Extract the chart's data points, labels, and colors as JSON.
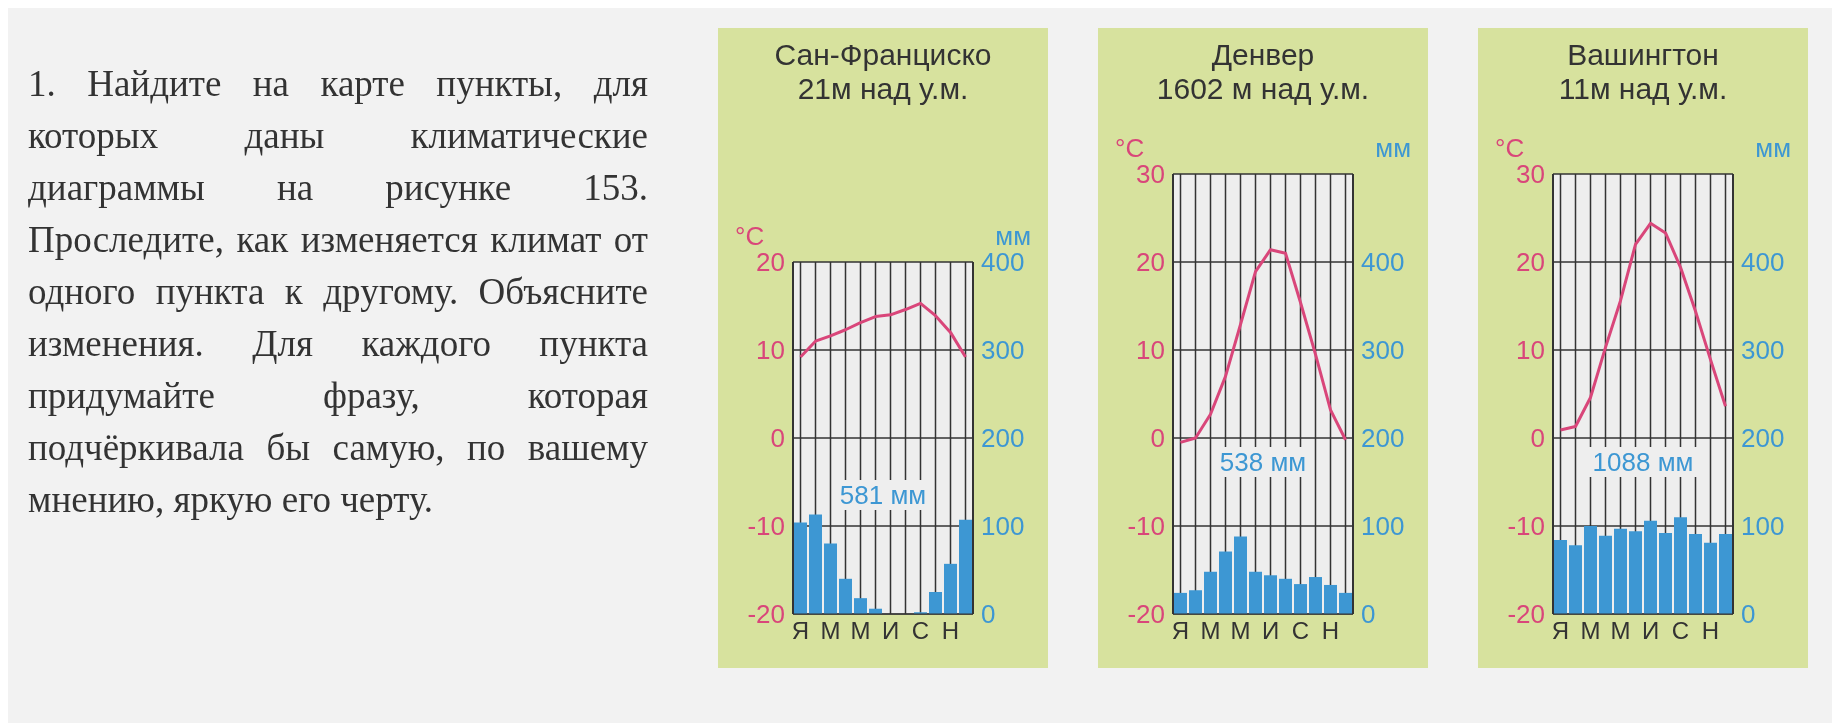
{
  "chart_data": [
    {
      "type": "other",
      "annotations": [
        "1. Найдите на карте пункты, для которых даны климатические диаграммы на рисунке 153. Проследите, как изменяется климат от одного пункта к другому. Объясните изменения. Для каждого пункта придумайте фразу, которая подчёркивала бы самую, по вашему мнению, яркую его черту."
      ]
    },
    {
      "type": "bar",
      "title": "Сан-Франциско",
      "subtitle": "21м над у.м.",
      "ylabel": "°C",
      "y2label": "мм",
      "categories": [
        "Я",
        null,
        "М",
        null,
        "М",
        null,
        "И",
        null,
        "С",
        null,
        "Н",
        null
      ],
      "series": [
        {
          "type": "bar",
          "axis": "y2",
          "color": "#3d97d3",
          "values": [
            104,
            113,
            80,
            40,
            18,
            6,
            0,
            null,
            2,
            25,
            57,
            107
          ]
        },
        {
          "type": "line",
          "axis": "y",
          "color": "#d9467a",
          "values": [
            9.2,
            11.0,
            11.6,
            12.3,
            13.1,
            13.8,
            14.0,
            14.6,
            15.3,
            13.9,
            12.0,
            9.2
          ]
        }
      ],
      "ylim": [
        -20,
        20
      ],
      "yticks": [
        -20,
        -10,
        0,
        10,
        20
      ],
      "y2lim": [
        0,
        400
      ],
      "y2ticks": [
        0,
        100,
        200,
        300,
        400
      ],
      "grid": true,
      "annotations": [
        "581 мм"
      ]
    },
    {
      "type": "bar",
      "title": "Денвер",
      "subtitle": "1602 м над у.м.",
      "ylabel": "°C",
      "y2label": "мм",
      "categories": [
        "Я",
        null,
        "М",
        null,
        "М",
        null,
        "И",
        null,
        "С",
        null,
        "Н",
        null
      ],
      "series": [
        {
          "type": "bar",
          "axis": "y2",
          "color": "#3d97d3",
          "values": [
            24,
            27,
            48,
            71,
            88,
            48,
            44,
            40,
            34,
            42,
            33,
            24
          ]
        },
        {
          "type": "line",
          "axis": "y",
          "color": "#d9467a",
          "values": [
            -0.5,
            0.0,
            2.7,
            7.0,
            12.9,
            18.9,
            21.4,
            21.0,
            15.4,
            9.5,
            3.2,
            -0.2
          ]
        }
      ],
      "ylim": [
        -20,
        30
      ],
      "yticks": [
        -20,
        -10,
        0,
        10,
        20,
        30
      ],
      "y2lim": [
        0,
        500
      ],
      "y2ticks": [
        0,
        100,
        200,
        300,
        400
      ],
      "grid": true,
      "annotations": [
        "538 мм"
      ]
    },
    {
      "type": "bar",
      "title": "Вашингтон",
      "subtitle": "11м над у.м.",
      "ylabel": "°C",
      "y2label": "мм",
      "categories": [
        "Я",
        null,
        "М",
        null,
        "М",
        null,
        "И",
        null,
        "С",
        null,
        "Н",
        null
      ],
      "series": [
        {
          "type": "bar",
          "axis": "y2",
          "color": "#3d97d3",
          "values": [
            84,
            78,
            100,
            89,
            97,
            94,
            106,
            92,
            110,
            91,
            81,
            91
          ]
        },
        {
          "type": "line",
          "axis": "y",
          "color": "#d9467a",
          "values": [
            0.9,
            1.3,
            4.6,
            10.3,
            15.6,
            22.0,
            24.4,
            23.3,
            19.4,
            14.4,
            8.9,
            3.6
          ]
        }
      ],
      "ylim": [
        -20,
        30
      ],
      "yticks": [
        -20,
        -10,
        0,
        10,
        20,
        30
      ],
      "y2lim": [
        0,
        500
      ],
      "y2ticks": [
        0,
        100,
        200,
        300,
        400
      ],
      "grid": true,
      "annotations": [
        "1088 мм"
      ]
    }
  ]
}
